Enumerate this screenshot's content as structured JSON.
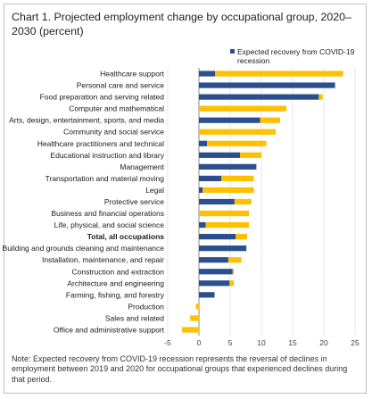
{
  "title": "Chart 1. Projected employment change by occupational group, 2020–2030 (percent)",
  "note": "Note: Expected recovery from COVID-19 recession represents the reversal of declines in employment between 2019 and 2020 for occupational groups that experienced declines during that period.",
  "legend": {
    "recovery_line1": "Expected recovery from COVID-19",
    "recovery_line2": "recession"
  },
  "colors": {
    "recovery": "#2b4f8e",
    "other": "#ffc000",
    "grid": "#d9d9d9",
    "axis": "#808080"
  },
  "chart_data": {
    "type": "bar",
    "orientation": "horizontal",
    "stacked": true,
    "xlim": [
      -5,
      25
    ],
    "xticks": [
      "-5",
      "0",
      "5",
      "10",
      "15",
      "20",
      "25"
    ],
    "grid": true,
    "legend_position": "top-right",
    "categories": [
      {
        "name": "Healthcare support",
        "recovery": 2.6,
        "total": 23.1,
        "bold": false
      },
      {
        "name": "Personal care and service",
        "recovery": 21.8,
        "total": 21.8,
        "bold": false
      },
      {
        "name": "Food preparation and serving related",
        "recovery": 19.2,
        "total": 19.8,
        "bold": false
      },
      {
        "name": "Computer and mathematical",
        "recovery": 0.0,
        "total": 14.0,
        "bold": false
      },
      {
        "name": "Arts, design, entertainment, sports, and media",
        "recovery": 9.8,
        "total": 13.0,
        "bold": false
      },
      {
        "name": "Community and social service",
        "recovery": 0.0,
        "total": 12.3,
        "bold": false
      },
      {
        "name": "Healthcare practitioners and technical",
        "recovery": 1.3,
        "total": 10.8,
        "bold": false
      },
      {
        "name": "Educational instruction and library",
        "recovery": 6.6,
        "total": 10.0,
        "bold": false
      },
      {
        "name": "Management",
        "recovery": 9.2,
        "total": 9.2,
        "bold": false
      },
      {
        "name": "Transportation and material moving",
        "recovery": 3.6,
        "total": 8.8,
        "bold": false
      },
      {
        "name": "Legal",
        "recovery": 0.6,
        "total": 8.8,
        "bold": false
      },
      {
        "name": "Protective service",
        "recovery": 5.7,
        "total": 8.4,
        "bold": false
      },
      {
        "name": "Business and financial operations",
        "recovery": 0.0,
        "total": 8.0,
        "bold": false
      },
      {
        "name": "Life, physical, and social science",
        "recovery": 1.1,
        "total": 8.0,
        "bold": false
      },
      {
        "name": "Total, all occupations",
        "recovery": 5.9,
        "total": 7.7,
        "bold": true
      },
      {
        "name": "Building and grounds cleaning and maintenance",
        "recovery": 7.6,
        "total": 7.6,
        "bold": false
      },
      {
        "name": "Installation, maintenance, and repair",
        "recovery": 4.7,
        "total": 6.8,
        "bold": false
      },
      {
        "name": "Construction and extraction",
        "recovery": 5.4,
        "total": 5.6,
        "bold": false
      },
      {
        "name": "Architecture and engineering",
        "recovery": 4.9,
        "total": 5.6,
        "bold": false
      },
      {
        "name": "Farming, fishing, and forestry",
        "recovery": 2.5,
        "total": 2.5,
        "bold": false
      },
      {
        "name": "Production",
        "recovery": 0.0,
        "total": -0.5,
        "bold": false
      },
      {
        "name": "Sales and related",
        "recovery": 0.0,
        "total": -1.4,
        "bold": false
      },
      {
        "name": "Office and administrative support",
        "recovery": 0.0,
        "total": -2.7,
        "bold": false
      }
    ]
  }
}
